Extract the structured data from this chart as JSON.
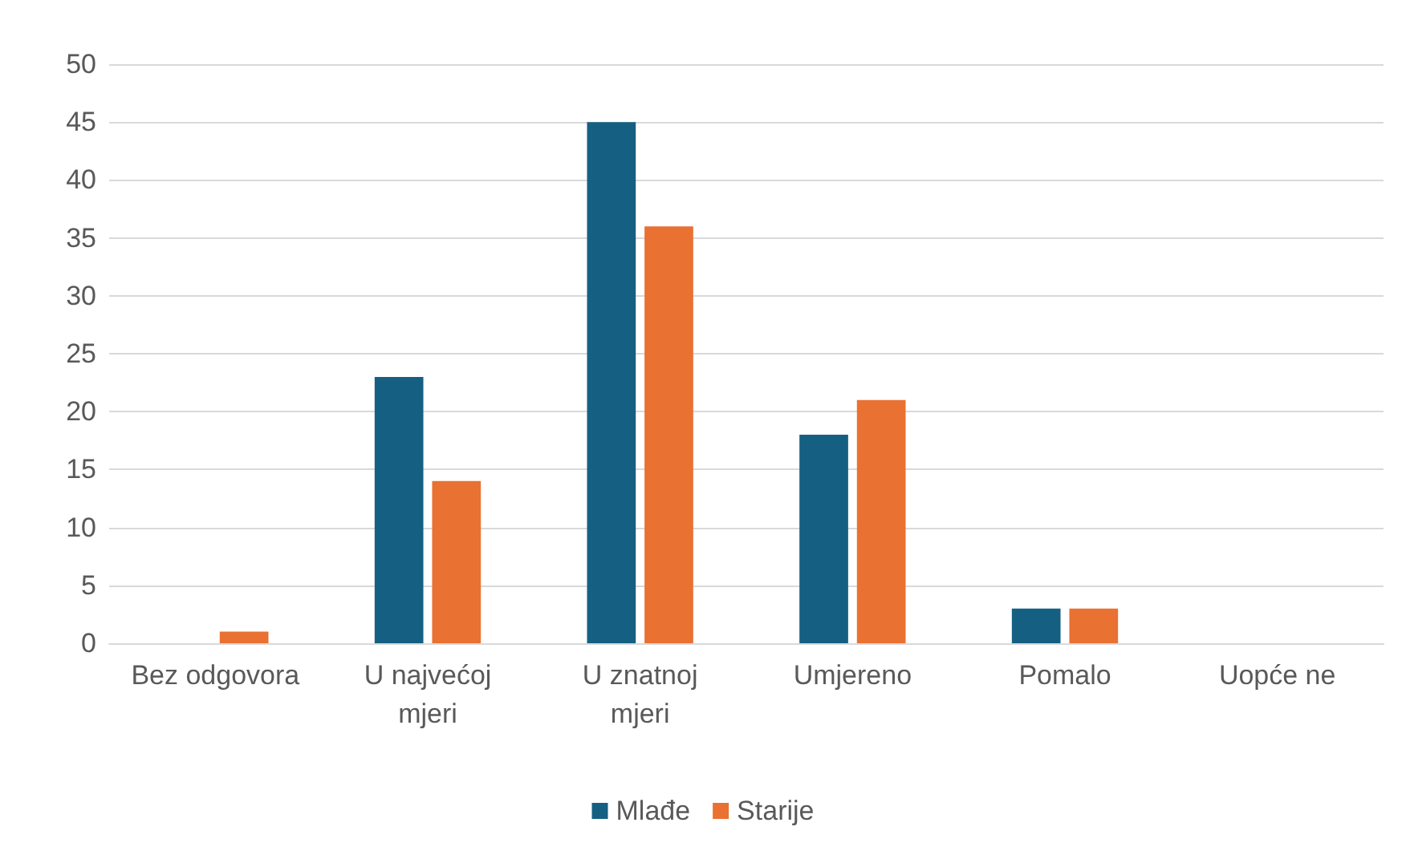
{
  "chart_data": {
    "type": "bar",
    "categories": [
      "Bez odgovora",
      "U najvećoj mjeri",
      "U znatnoj mjeri",
      "Umjereno",
      "Pomalo",
      "Uopće ne"
    ],
    "series": [
      {
        "name": "Mlađe",
        "color": "#156082",
        "values": [
          0,
          23,
          45,
          18,
          3,
          0
        ]
      },
      {
        "name": "Starije",
        "color": "#e97132",
        "values": [
          1,
          14,
          36,
          21,
          3,
          0
        ]
      }
    ],
    "ylim": [
      0,
      50
    ],
    "yticks": [
      0,
      5,
      10,
      15,
      20,
      25,
      30,
      35,
      40,
      45,
      50
    ],
    "grid": "y",
    "legend": "bottom"
  }
}
